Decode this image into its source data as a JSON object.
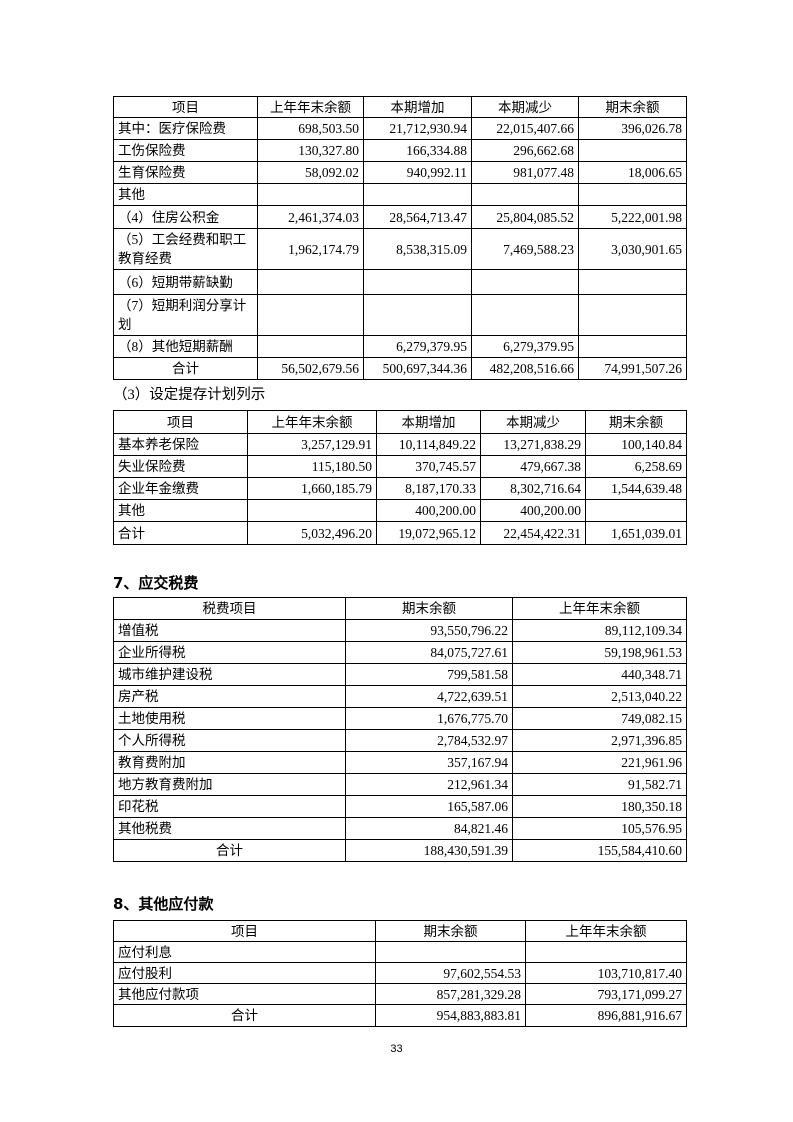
{
  "table1": {
    "headers": [
      "项目",
      "上年年末余额",
      "本期增加",
      "本期减少",
      "期末余额"
    ],
    "rows": [
      [
        "其中：医疗保险费",
        "698,503.50",
        "21,712,930.94",
        "22,015,407.66",
        "396,026.78"
      ],
      [
        "工伤保险费",
        "130,327.80",
        "166,334.88",
        "296,662.68",
        ""
      ],
      [
        "生育保险费",
        "58,092.02",
        "940,992.11",
        "981,077.48",
        "18,006.65"
      ],
      [
        "其他",
        "",
        "",
        "",
        ""
      ],
      [
        "（4）住房公积金",
        "2,461,374.03",
        "28,564,713.47",
        "25,804,085.52",
        "5,222,001.98"
      ],
      [
        "（5）工会经费和职工教育经费",
        "1,962,174.79",
        "8,538,315.09",
        "7,469,588.23",
        "3,030,901.65"
      ],
      [
        "（6）短期带薪缺勤",
        "",
        "",
        "",
        ""
      ],
      [
        "（7）短期利润分享计划",
        "",
        "",
        "",
        ""
      ],
      [
        "（8）其他短期薪酬",
        "",
        "6,279,379.95",
        "6,279,379.95",
        ""
      ],
      [
        "合计",
        "56,502,679.56",
        "500,697,344.36",
        "482,208,516.66",
        "74,991,507.26"
      ]
    ]
  },
  "subheading3": "（3）设定提存计划列示",
  "table2": {
    "headers": [
      "项目",
      "上年年末余额",
      "本期增加",
      "本期减少",
      "期末余额"
    ],
    "rows": [
      [
        "基本养老保险",
        "3,257,129.91",
        "10,114,849.22",
        "13,271,838.29",
        "100,140.84"
      ],
      [
        "失业保险费",
        "115,180.50",
        "370,745.57",
        "479,667.38",
        "6,258.69"
      ],
      [
        "企业年金缴费",
        "1,660,185.79",
        "8,187,170.33",
        "8,302,716.64",
        "1,544,639.48"
      ],
      [
        "其他",
        "",
        "400,200.00",
        "400,200.00",
        ""
      ],
      [
        "合计",
        "5,032,496.20",
        "19,072,965.12",
        "22,454,422.31",
        "1,651,039.01"
      ]
    ]
  },
  "heading7": "7、应交税费",
  "table3": {
    "headers": [
      "税费项目",
      "期末余额",
      "上年年末余额"
    ],
    "rows": [
      [
        "增值税",
        "93,550,796.22",
        "89,112,109.34"
      ],
      [
        "企业所得税",
        "84,075,727.61",
        "59,198,961.53"
      ],
      [
        "城市维护建设税",
        "799,581.58",
        "440,348.71"
      ],
      [
        "房产税",
        "4,722,639.51",
        "2,513,040.22"
      ],
      [
        "土地使用税",
        "1,676,775.70",
        "749,082.15"
      ],
      [
        "个人所得税",
        "2,784,532.97",
        "2,971,396.85"
      ],
      [
        "教育费附加",
        "357,167.94",
        "221,961.96"
      ],
      [
        "地方教育费附加",
        "212,961.34",
        "91,582.71"
      ],
      [
        "印花税",
        "165,587.06",
        "180,350.18"
      ],
      [
        "其他税费",
        "84,821.46",
        "105,576.95"
      ],
      [
        "合计",
        "188,430,591.39",
        "155,584,410.60"
      ]
    ]
  },
  "heading8": "8、其他应付款",
  "table4": {
    "headers": [
      "项目",
      "期末余额",
      "上年年末余额"
    ],
    "rows": [
      [
        "应付利息",
        "",
        ""
      ],
      [
        "应付股利",
        "97,602,554.53",
        "103,710,817.40"
      ],
      [
        "其他应付款项",
        "857,281,329.28",
        "793,171,099.27"
      ],
      [
        "合计",
        "954,883,883.81",
        "896,881,916.67"
      ]
    ]
  },
  "page_number": "33"
}
